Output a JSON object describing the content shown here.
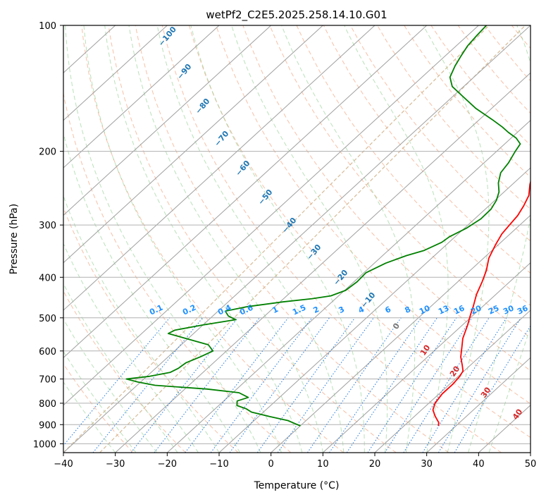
{
  "chart_data": {
    "type": "line",
    "subtype": "skew-T log-P diagram",
    "title": "wetPf2_C2E5.2025.258.14.10.G01",
    "xlabel": "Temperature (°C)",
    "ylabel": "Pressure (hPa)",
    "xlim": [
      -40,
      50
    ],
    "ylim": [
      1050,
      100
    ],
    "x_ticks": [
      -40,
      -30,
      -20,
      -10,
      0,
      10,
      20,
      30,
      40,
      50
    ],
    "x_tick_labels": [
      "−40",
      "−30",
      "−20",
      "−10",
      "0",
      "10",
      "20",
      "30",
      "40",
      "50"
    ],
    "y_ticks": [
      100,
      200,
      300,
      400,
      500,
      600,
      700,
      800,
      900,
      1000
    ],
    "y_tick_labels": [
      "100",
      "200",
      "300",
      "400",
      "500",
      "600",
      "700",
      "800",
      "900",
      "1000"
    ],
    "grid": true,
    "series": [
      {
        "name": "Temperature",
        "color": "#ff0000",
        "points": [
          [
            906,
            26.6
          ],
          [
            890,
            26.0
          ],
          [
            860,
            24.0
          ],
          [
            830,
            22.2
          ],
          [
            800,
            21.2
          ],
          [
            760,
            20.6
          ],
          [
            720,
            20.6
          ],
          [
            690,
            20.3
          ],
          [
            670,
            19.8
          ],
          [
            650,
            18.5
          ],
          [
            620,
            16.4
          ],
          [
            590,
            14.7
          ],
          [
            560,
            12.9
          ],
          [
            520,
            11.0
          ],
          [
            490,
            9.3
          ],
          [
            470,
            8.2
          ],
          [
            440,
            6.3
          ],
          [
            410,
            4.7
          ],
          [
            385,
            3.1
          ],
          [
            360,
            1.0
          ],
          [
            335,
            -0.5
          ],
          [
            315,
            -1.6
          ],
          [
            300,
            -2.0
          ],
          [
            285,
            -2.4
          ],
          [
            270,
            -3.3
          ],
          [
            255,
            -4.5
          ],
          [
            240,
            -6.6
          ],
          [
            225,
            -8.5
          ],
          [
            210,
            -10.1
          ],
          [
            200,
            -11.5
          ],
          [
            190,
            -12.9
          ],
          [
            183,
            -13.5
          ],
          [
            178,
            -13.0
          ],
          [
            172,
            -11.5
          ],
          [
            165,
            -9.0
          ],
          [
            155,
            -7.4
          ],
          [
            148,
            -6.8
          ],
          [
            142,
            -6.3
          ],
          [
            136,
            -6.0
          ],
          [
            130,
            -5.9
          ],
          [
            123,
            -6.5
          ],
          [
            116,
            -7.0
          ],
          [
            112,
            -7.4
          ],
          [
            108,
            -9.0
          ],
          [
            104,
            -10.1
          ],
          [
            100,
            -11.5
          ]
        ]
      },
      {
        "name": "Dewpoint",
        "color": "#008000",
        "points": [
          [
            906,
            0.0
          ],
          [
            895,
            -1.5
          ],
          [
            880,
            -3.5
          ],
          [
            860,
            -8.0
          ],
          [
            840,
            -12.3
          ],
          [
            825,
            -14.0
          ],
          [
            810,
            -16.5
          ],
          [
            790,
            -17.4
          ],
          [
            775,
            -16.0
          ],
          [
            755,
            -18.8
          ],
          [
            740,
            -25.7
          ],
          [
            725,
            -36.5
          ],
          [
            712,
            -40.5
          ],
          [
            700,
            -43.4
          ],
          [
            690,
            -39.5
          ],
          [
            675,
            -36.3
          ],
          [
            660,
            -35.6
          ],
          [
            640,
            -35.3
          ],
          [
            620,
            -33.8
          ],
          [
            600,
            -32.6
          ],
          [
            580,
            -34.8
          ],
          [
            560,
            -40.5
          ],
          [
            545,
            -44.9
          ],
          [
            535,
            -44.3
          ],
          [
            520,
            -40.0
          ],
          [
            505,
            -34.8
          ],
          [
            495,
            -37.0
          ],
          [
            482,
            -38.6
          ],
          [
            470,
            -35.2
          ],
          [
            458,
            -29.5
          ],
          [
            450,
            -24.5
          ],
          [
            443,
            -21.5
          ],
          [
            430,
            -19.8
          ],
          [
            410,
            -19.4
          ],
          [
            390,
            -19.6
          ],
          [
            370,
            -17.8
          ],
          [
            355,
            -15.4
          ],
          [
            345,
            -13.1
          ],
          [
            330,
            -11.4
          ],
          [
            320,
            -11.1
          ],
          [
            305,
            -9.6
          ],
          [
            290,
            -8.8
          ],
          [
            275,
            -8.9
          ],
          [
            262,
            -9.7
          ],
          [
            250,
            -11.0
          ],
          [
            238,
            -13.0
          ],
          [
            225,
            -14.7
          ],
          [
            213,
            -15.3
          ],
          [
            200,
            -16.4
          ],
          [
            192,
            -17.0
          ],
          [
            186,
            -19.0
          ],
          [
            180,
            -21.8
          ],
          [
            175,
            -24.0
          ],
          [
            168,
            -27.5
          ],
          [
            158,
            -33.0
          ],
          [
            148,
            -38.0
          ],
          [
            140,
            -42.2
          ],
          [
            133,
            -44.6
          ],
          [
            125,
            -46.0
          ],
          [
            118,
            -47.0
          ],
          [
            112,
            -47.8
          ],
          [
            106,
            -48.2
          ],
          [
            100,
            -48.5
          ]
        ]
      }
    ],
    "dry_adiabat_labels": [
      "−100",
      "−90",
      "−80",
      "−70",
      "−60",
      "−50",
      "−40",
      "−30",
      "−20",
      "−10"
    ],
    "dry_adiabat_label_color": "#1f77b4",
    "mixing_ratio_labels": [
      "0.1",
      "0.2",
      "0.4",
      "0.6",
      "1",
      "1.5",
      "2",
      "3",
      "4",
      "6",
      "8",
      "10",
      "13",
      "16",
      "20",
      "25",
      "30",
      "36"
    ],
    "mixing_ratio_label_color": "#1e90ff",
    "moist_adiabat_labels": [
      "0",
      "10",
      "20",
      "30",
      "40"
    ],
    "moist_adiabat_label_colors": [
      "#777777",
      "#d62728",
      "#d62728",
      "#d62728",
      "#d62728"
    ],
    "colors": {
      "isobar_grid": "#b0b0b0",
      "isotherm_grid": "#a0a0a0",
      "dry_adiabat": "#f4a582",
      "moist_adiabat": "#7fc97f",
      "mixing_ratio": "#1e78dc",
      "frost_curve": "#d2b48c"
    }
  }
}
